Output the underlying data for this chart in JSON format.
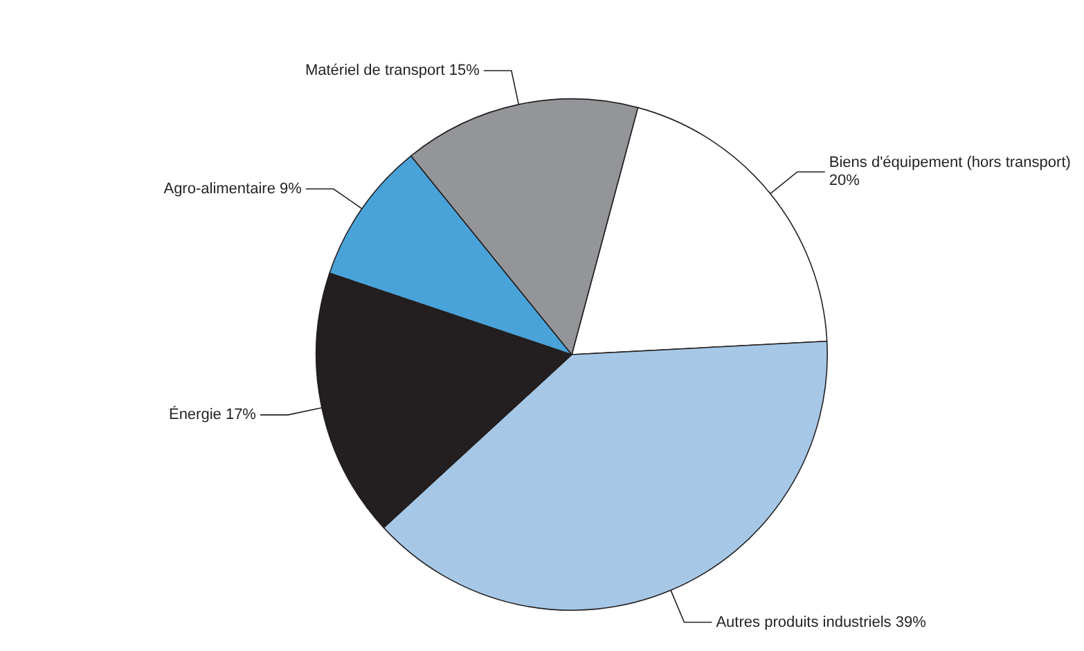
{
  "chart_data": {
    "type": "pie",
    "categories": [
      "Biens d'équipement (hors transport)",
      "Autres produits industriels",
      "Énergie",
      "Agro-alimentaire",
      "Matériel de transport"
    ],
    "values": [
      20,
      39,
      17,
      9,
      15
    ],
    "value_labels": [
      "20%",
      "39%",
      "17%",
      "9%",
      "15%"
    ],
    "colors": [
      "#ffffff",
      "#a6c8e6",
      "#231f20",
      "#4aa3d8",
      "#939598"
    ],
    "legend": false
  }
}
